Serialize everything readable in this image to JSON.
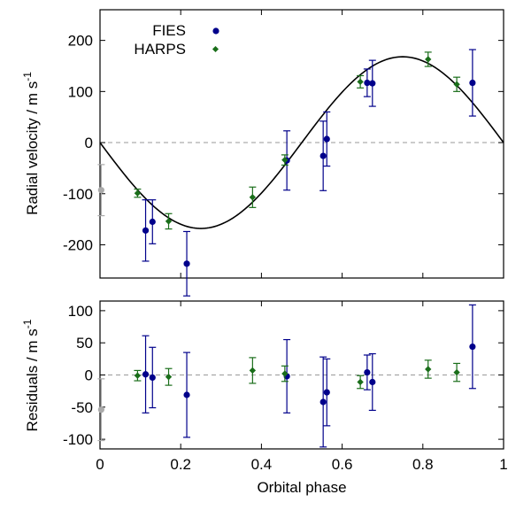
{
  "colors": {
    "fies": "#00008b",
    "harps": "#1a6e1a",
    "excluded": "#aaaaaa",
    "model": "#000000",
    "zero_line": "#999999"
  },
  "legend": {
    "fies": "FIES",
    "harps": "HARPS"
  },
  "chart_data": [
    {
      "type": "scatter",
      "panel": "top",
      "title": "",
      "xlabel": "",
      "ylabel": "Radial velocity / m s-1",
      "ylabel_main": "Radial velocity / m s",
      "ylabel_sup": "-1",
      "xlim": [
        0,
        1
      ],
      "ylim": [
        -265,
        260
      ],
      "yticks": [
        -200,
        -100,
        0,
        100,
        200
      ],
      "yticklabels": [
        "-200",
        "-100",
        "0",
        "100",
        "200"
      ],
      "legend_position": "top-left",
      "model": {
        "name": "",
        "amplitude": 168,
        "form": "-K sin(2*pi*phase)"
      },
      "zero_line": true,
      "series": [
        {
          "name": "FIES",
          "marker": "circle",
          "points": [
            {
              "x": 0.113,
              "y": -172,
              "err": 60
            },
            {
              "x": 0.13,
              "y": -155,
              "err": 43
            },
            {
              "x": 0.215,
              "y": -237,
              "err": 63
            },
            {
              "x": 0.463,
              "y": -35,
              "err": 58
            },
            {
              "x": 0.553,
              "y": -26,
              "err": 68
            },
            {
              "x": 0.562,
              "y": 7,
              "err": 53
            },
            {
              "x": 0.662,
              "y": 117,
              "err": 27
            },
            {
              "x": 0.675,
              "y": 116,
              "err": 45
            },
            {
              "x": 0.923,
              "y": 117,
              "err": 65
            }
          ]
        },
        {
          "name": "HARPS",
          "marker": "diamond",
          "points": [
            {
              "x": 0.093,
              "y": -99,
              "err": 8
            },
            {
              "x": 0.17,
              "y": -154,
              "err": 15
            },
            {
              "x": 0.378,
              "y": -107,
              "err": 20
            },
            {
              "x": 0.458,
              "y": -34,
              "err": 10
            },
            {
              "x": 0.645,
              "y": 119,
              "err": 12
            },
            {
              "x": 0.813,
              "y": 163,
              "err": 14
            },
            {
              "x": 0.884,
              "y": 114,
              "err": 14
            }
          ]
        },
        {
          "name": "",
          "marker": "circle",
          "excluded": true,
          "points": [
            {
              "x": 0.003,
              "y": -93,
              "err": 50
            }
          ]
        }
      ]
    },
    {
      "type": "scatter",
      "panel": "bottom",
      "title": "",
      "xlabel": "Orbital phase",
      "ylabel": "Residuals / m s-1",
      "ylabel_main": "Residuals / m s",
      "ylabel_sup": "-1",
      "xlim": [
        0,
        1
      ],
      "ylim": [
        -115,
        115
      ],
      "xticks": [
        0,
        0.2,
        0.4,
        0.6,
        0.8,
        1
      ],
      "xticklabels": [
        "0",
        "0.2",
        "0.4",
        "0.6",
        "0.8",
        "1"
      ],
      "yticks": [
        -100,
        -50,
        0,
        50,
        100
      ],
      "yticklabels": [
        "-100",
        "-50",
        "0",
        "50",
        "100"
      ],
      "zero_line": true,
      "series": [
        {
          "name": "FIES",
          "marker": "circle",
          "points": [
            {
              "x": 0.113,
              "y": 1,
              "err": 60
            },
            {
              "x": 0.13,
              "y": -4,
              "err": 47
            },
            {
              "x": 0.215,
              "y": -31,
              "err": 66
            },
            {
              "x": 0.463,
              "y": -2,
              "err": 57
            },
            {
              "x": 0.553,
              "y": -42,
              "err": 70
            },
            {
              "x": 0.562,
              "y": -27,
              "err": 52
            },
            {
              "x": 0.662,
              "y": 4,
              "err": 27
            },
            {
              "x": 0.675,
              "y": -11,
              "err": 44
            },
            {
              "x": 0.923,
              "y": 44,
              "err": 65
            }
          ]
        },
        {
          "name": "HARPS",
          "marker": "diamond",
          "points": [
            {
              "x": 0.093,
              "y": -1,
              "err": 8
            },
            {
              "x": 0.17,
              "y": -3,
              "err": 13
            },
            {
              "x": 0.378,
              "y": 7,
              "err": 20
            },
            {
              "x": 0.458,
              "y": 2,
              "err": 12
            },
            {
              "x": 0.645,
              "y": -11,
              "err": 10
            },
            {
              "x": 0.813,
              "y": 9,
              "err": 14
            },
            {
              "x": 0.884,
              "y": 4,
              "err": 14
            }
          ]
        },
        {
          "name": "",
          "marker": "circle",
          "excluded": true,
          "points": [
            {
              "x": 0.003,
              "y": -54,
              "err": 48
            }
          ]
        }
      ]
    }
  ]
}
